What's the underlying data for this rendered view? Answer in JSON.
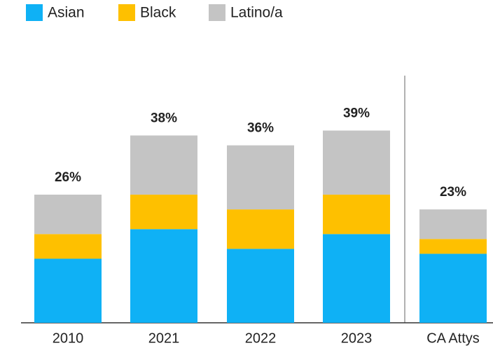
{
  "chart_data": {
    "type": "stacked-bar",
    "categories": [
      "2010",
      "2021",
      "2022",
      "2023",
      "CA Attys"
    ],
    "series": [
      {
        "name": "Asian",
        "color": "#0fb1f5",
        "values": [
          13,
          19,
          15,
          18,
          14
        ]
      },
      {
        "name": "Black",
        "color": "#fec000",
        "values": [
          5,
          7,
          8,
          8,
          3
        ]
      },
      {
        "name": "Latino/a",
        "color": "#c4c4c4",
        "values": [
          8,
          12,
          13,
          13,
          6
        ]
      }
    ],
    "totals": [
      26,
      38,
      36,
      39,
      23
    ],
    "total_labels": [
      "26%",
      "38%",
      "36%",
      "39%",
      "23%"
    ],
    "ylim": [
      0,
      50
    ]
  }
}
